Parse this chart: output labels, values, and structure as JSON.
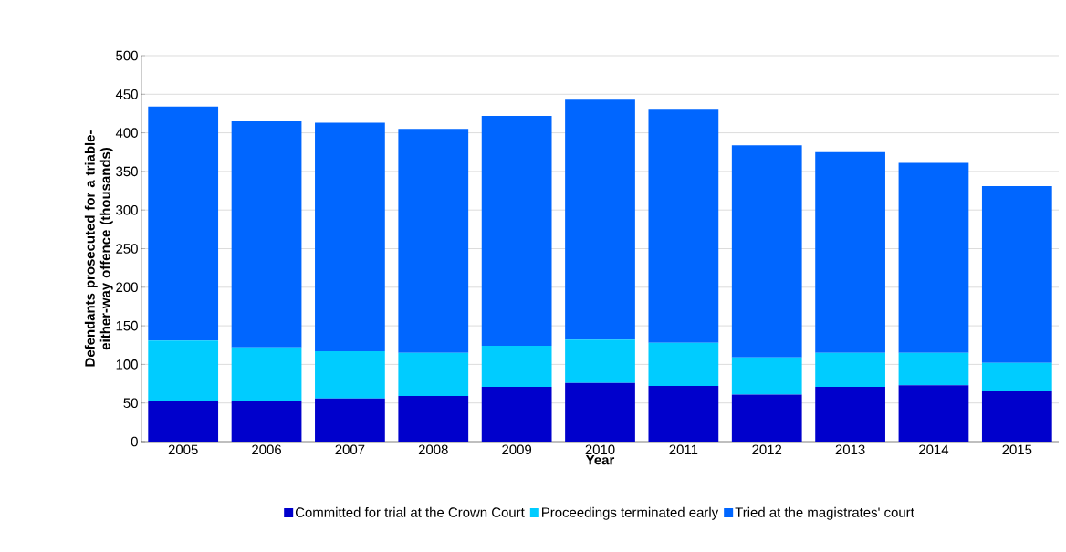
{
  "chart_data": {
    "type": "bar",
    "stacked": true,
    "xlabel": "Year",
    "ylabel": "Defendants prosecuted for a triable-either-way offence (thousands)",
    "categories": [
      "2005",
      "2006",
      "2007",
      "2008",
      "2009",
      "2010",
      "2011",
      "2012",
      "2013",
      "2014",
      "2015"
    ],
    "series": [
      {
        "name": "Committed for trial at the Crown Court",
        "color": "#0000cc",
        "values": [
          52,
          52,
          56,
          59,
          71,
          76,
          72,
          61,
          71,
          73,
          65
        ]
      },
      {
        "name": "Proceedings terminated early",
        "color": "#00ccff",
        "values": [
          79,
          70,
          61,
          56,
          53,
          56,
          56,
          48,
          44,
          42,
          37
        ]
      },
      {
        "name": "Tried at the magistrates' court",
        "color": "#0066ff",
        "values": [
          303,
          293,
          296,
          290,
          298,
          311,
          302,
          275,
          260,
          246,
          229
        ]
      }
    ],
    "ylim": [
      0,
      500
    ],
    "yticks": [
      0,
      50,
      100,
      150,
      200,
      250,
      300,
      350,
      400,
      450,
      500
    ],
    "grid": "y",
    "legend": "bottom"
  }
}
